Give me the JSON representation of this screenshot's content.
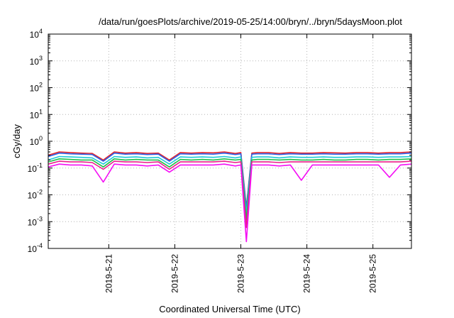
{
  "chart_data": {
    "type": "line",
    "title": "/data/run/goesPlots/archive/2019-05-25/14:00/bryn/../bryn/5daysMoon.plot",
    "xlabel": "Coordinated Universal Time (UTC)",
    "ylabel": "cGy/day",
    "yscale": "log",
    "ylim": [
      0.0001,
      10000
    ],
    "xlim": [
      "2019-05-20 02:00",
      "2019-05-25 14:00"
    ],
    "grid": true,
    "x_tick_labels": [
      "2019-5-21",
      "2019-5-22",
      "2019-5-23",
      "2019-5-24",
      "2019-5-25"
    ],
    "y_ticks": [
      {
        "base": "10",
        "exp": "-4",
        "value": 0.0001
      },
      {
        "base": "10",
        "exp": "-3",
        "value": 0.001
      },
      {
        "base": "10",
        "exp": "-2",
        "value": 0.01
      },
      {
        "base": "10",
        "exp": "-1",
        "value": 0.1
      },
      {
        "base": "10",
        "exp": "0",
        "value": 1
      },
      {
        "base": "10",
        "exp": "1",
        "value": 10
      },
      {
        "base": "10",
        "exp": "2",
        "value": 100
      },
      {
        "base": "10",
        "exp": "3",
        "value": 1000
      },
      {
        "base": "10",
        "exp": "4",
        "value": 10000
      }
    ],
    "x": [
      "2019-05-20 02:00",
      "2019-05-20 06:00",
      "2019-05-20 10:00",
      "2019-05-20 14:00",
      "2019-05-20 18:00",
      "2019-05-20 22:00",
      "2019-05-21 02:00",
      "2019-05-21 06:00",
      "2019-05-21 10:00",
      "2019-05-21 14:00",
      "2019-05-21 18:00",
      "2019-05-21 22:00",
      "2019-05-22 02:00",
      "2019-05-22 06:00",
      "2019-05-22 10:00",
      "2019-05-22 14:00",
      "2019-05-22 18:00",
      "2019-05-22 22:00",
      "2019-05-23 00:00",
      "2019-05-23 02:00",
      "2019-05-23 04:00",
      "2019-05-23 06:00",
      "2019-05-23 10:00",
      "2019-05-23 14:00",
      "2019-05-23 18:00",
      "2019-05-23 22:00",
      "2019-05-24 02:00",
      "2019-05-24 06:00",
      "2019-05-24 10:00",
      "2019-05-24 14:00",
      "2019-05-24 18:00",
      "2019-05-24 22:00",
      "2019-05-25 02:00",
      "2019-05-25 06:00",
      "2019-05-25 10:00",
      "2019-05-25 14:00"
    ],
    "series": [
      {
        "color": "#e8252a",
        "values": [
          0.3,
          0.4,
          0.38,
          0.36,
          0.35,
          0.2,
          0.4,
          0.36,
          0.38,
          0.35,
          0.36,
          0.2,
          0.38,
          0.36,
          0.38,
          0.37,
          0.4,
          0.35,
          0.38,
          0.0035,
          0.36,
          0.38,
          0.38,
          0.35,
          0.38,
          0.36,
          0.36,
          0.38,
          0.37,
          0.36,
          0.38,
          0.38,
          0.36,
          0.38,
          0.38,
          0.4
        ]
      },
      {
        "color": "#2a5fe6",
        "values": [
          0.27,
          0.36,
          0.34,
          0.33,
          0.32,
          0.18,
          0.36,
          0.33,
          0.34,
          0.32,
          0.33,
          0.18,
          0.34,
          0.33,
          0.34,
          0.33,
          0.36,
          0.32,
          0.34,
          0.003,
          0.33,
          0.34,
          0.34,
          0.32,
          0.34,
          0.33,
          0.33,
          0.34,
          0.33,
          0.33,
          0.34,
          0.34,
          0.33,
          0.34,
          0.34,
          0.36
        ]
      },
      {
        "color": "#1fc9d8",
        "values": [
          0.2,
          0.27,
          0.26,
          0.25,
          0.24,
          0.14,
          0.27,
          0.25,
          0.26,
          0.24,
          0.25,
          0.14,
          0.26,
          0.25,
          0.26,
          0.25,
          0.27,
          0.24,
          0.26,
          0.002,
          0.25,
          0.26,
          0.26,
          0.24,
          0.26,
          0.25,
          0.25,
          0.26,
          0.25,
          0.25,
          0.26,
          0.26,
          0.25,
          0.26,
          0.26,
          0.27
        ]
      },
      {
        "color": "#1ec04a",
        "values": [
          0.17,
          0.22,
          0.21,
          0.2,
          0.2,
          0.11,
          0.22,
          0.2,
          0.21,
          0.2,
          0.2,
          0.11,
          0.21,
          0.2,
          0.21,
          0.2,
          0.22,
          0.2,
          0.21,
          0.0012,
          0.2,
          0.21,
          0.21,
          0.2,
          0.21,
          0.2,
          0.2,
          0.21,
          0.2,
          0.2,
          0.21,
          0.21,
          0.2,
          0.21,
          0.21,
          0.22
        ]
      },
      {
        "color": "#ea1e8a",
        "values": [
          0.14,
          0.18,
          0.17,
          0.17,
          0.16,
          0.09,
          0.18,
          0.17,
          0.17,
          0.16,
          0.17,
          0.09,
          0.17,
          0.17,
          0.17,
          0.17,
          0.18,
          0.16,
          0.17,
          0.0006,
          0.17,
          0.17,
          0.17,
          0.16,
          0.17,
          0.17,
          0.17,
          0.17,
          0.17,
          0.17,
          0.17,
          0.17,
          0.17,
          0.17,
          0.17,
          0.18
        ]
      },
      {
        "color": "#f40ff4",
        "values": [
          0.11,
          0.14,
          0.13,
          0.13,
          0.12,
          0.03,
          0.14,
          0.13,
          0.13,
          0.12,
          0.13,
          0.07,
          0.13,
          0.13,
          0.13,
          0.13,
          0.14,
          0.12,
          0.13,
          0.00018,
          0.13,
          0.13,
          0.13,
          0.12,
          0.13,
          0.035,
          0.13,
          0.13,
          0.13,
          0.13,
          0.13,
          0.13,
          0.13,
          0.045,
          0.13,
          0.14
        ]
      }
    ]
  }
}
